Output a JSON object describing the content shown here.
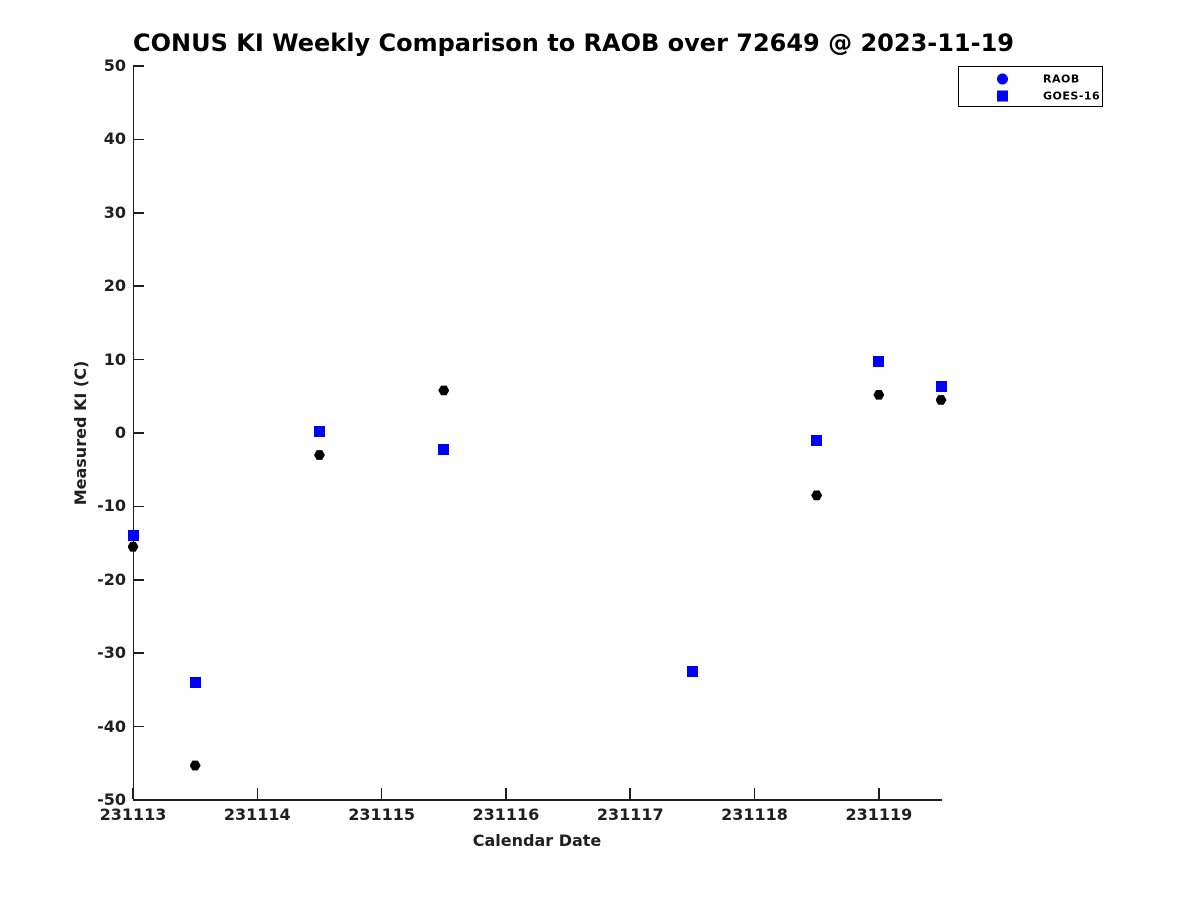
{
  "title": "CONUS KI Weekly Comparison to RAOB over 72649 @ 2023-11-19",
  "colors": {
    "series_blue": "#0000ff",
    "series_black": "#000000",
    "axis": "#1f1f1f",
    "background": "#ffffff"
  },
  "chart_data": {
    "type": "scatter",
    "title": "CONUS KI Weekly Comparison to RAOB over 72649 @ 2023-11-19",
    "xlabel": "Calendar Date",
    "ylabel": "Measured KI (C)",
    "xlim": [
      231113,
      231119.5
    ],
    "ylim": [
      -50,
      50
    ],
    "xticks": [
      231113,
      231114,
      231115,
      231116,
      231117,
      231118,
      231119
    ],
    "yticks": [
      -50,
      -40,
      -30,
      -20,
      -10,
      0,
      10,
      20,
      30,
      40,
      50
    ],
    "grid": false,
    "tick_direction": "in",
    "spines": [
      "left",
      "bottom"
    ],
    "legend_position": "top-right",
    "series": [
      {
        "name": "RAOB",
        "marker": "hexagon",
        "legend_marker": "circle",
        "plot_color": "#000000",
        "legend_color": "#0000ff",
        "points": [
          [
            231113.0,
            -15.5
          ],
          [
            231113.5,
            -45.3
          ],
          [
            231114.5,
            -3.0
          ],
          [
            231115.5,
            5.8
          ],
          [
            231118.5,
            -8.5
          ],
          [
            231119.0,
            5.2
          ],
          [
            231119.5,
            4.5
          ]
        ]
      },
      {
        "name": "GOES-16",
        "marker": "square",
        "legend_marker": "square",
        "plot_color": "#0000ff",
        "legend_color": "#0000ff",
        "points": [
          [
            231113.0,
            -14.0
          ],
          [
            231113.5,
            -34.0
          ],
          [
            231114.5,
            0.2
          ],
          [
            231115.5,
            -2.2
          ],
          [
            231117.5,
            -32.5
          ],
          [
            231118.5,
            -1.0
          ],
          [
            231119.0,
            9.8
          ],
          [
            231119.5,
            6.4
          ]
        ]
      }
    ]
  }
}
